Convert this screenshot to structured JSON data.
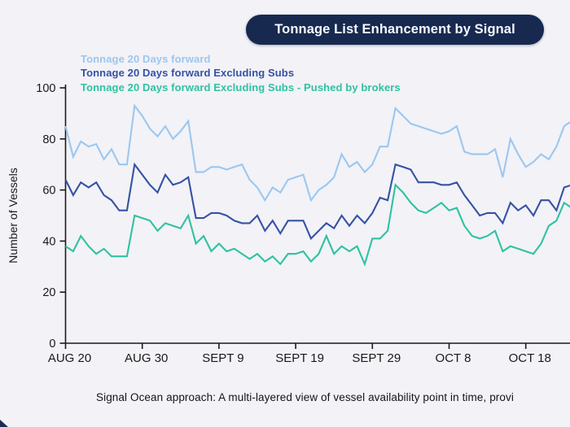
{
  "title": "Tonnage List Enhancement by Signal",
  "caption": "Signal Ocean approach: A multi-layered view of vessel availability point in time, provi",
  "colors": {
    "title_pill_bg": "#17294f",
    "title_pill_text": "#f5f8fe",
    "background": "#f2f2f7",
    "axis": "#1a1a1a",
    "series_light_blue": "#9cc7f0",
    "series_dark_blue": "#3552a4",
    "series_teal": "#2fc2a1"
  },
  "chart_data": {
    "type": "line",
    "title": "Tonnage List Enhancement by Signal",
    "xlabel": "",
    "ylabel": "Number of Vessels",
    "ylim": [
      0,
      100
    ],
    "yticks": [
      0,
      20,
      40,
      60,
      80,
      100
    ],
    "grid": false,
    "legend_position": "top-left",
    "x_description": "daily points, Aug 20 through ~Oct 25 (right edge clipped)",
    "x_tick_labels": [
      "AUG 20",
      "AUG 30",
      "SEPT 9",
      "SEPT 19",
      "SEPT 29",
      "OCT 8",
      "OCT 18"
    ],
    "x_tick_indices": [
      0,
      10,
      20,
      30,
      40,
      50,
      60
    ],
    "series": [
      {
        "name": "Tonnage 20 Days forward",
        "color": "#9cc7f0",
        "values": [
          85,
          73,
          79,
          77,
          78,
          72,
          76,
          70,
          70,
          93,
          89,
          84,
          81,
          85,
          80,
          83,
          87,
          67,
          67,
          69,
          69,
          68,
          69,
          70,
          64,
          61,
          56,
          61,
          59,
          64,
          65,
          66,
          56,
          60,
          62,
          65,
          74,
          69,
          71,
          67,
          70,
          77,
          77,
          92,
          89,
          86,
          85,
          84,
          83,
          82,
          83,
          85,
          75,
          74,
          74,
          74,
          76,
          65,
          80,
          74,
          69,
          71,
          74,
          72,
          77,
          85,
          87
        ]
      },
      {
        "name": "Tonnage 20 Days forward Excluding Subs",
        "color": "#3552a4",
        "values": [
          64,
          58,
          63,
          61,
          63,
          58,
          56,
          52,
          52,
          70,
          66,
          62,
          59,
          66,
          62,
          63,
          65,
          49,
          49,
          51,
          51,
          50,
          48,
          47,
          47,
          50,
          44,
          48,
          43,
          48,
          48,
          48,
          41,
          44,
          47,
          45,
          50,
          46,
          50,
          47,
          51,
          57,
          56,
          70,
          69,
          68,
          63,
          63,
          63,
          62,
          62,
          63,
          58,
          54,
          50,
          51,
          51,
          47,
          55,
          52,
          54,
          50,
          56,
          56,
          52,
          61,
          62
        ]
      },
      {
        "name": "Tonnage 20 Days forward Excluding Subs - Pushed by brokers",
        "color": "#2fc2a1",
        "values": [
          38,
          36,
          42,
          38,
          35,
          37,
          34,
          34,
          34,
          50,
          49,
          48,
          44,
          47,
          46,
          45,
          50,
          39,
          42,
          36,
          39,
          36,
          37,
          35,
          33,
          35,
          32,
          34,
          31,
          35,
          35,
          36,
          32,
          35,
          42,
          35,
          38,
          36,
          38,
          31,
          41,
          41,
          44,
          62,
          59,
          55,
          52,
          51,
          53,
          55,
          52,
          53,
          46,
          42,
          41,
          42,
          44,
          36,
          38,
          37,
          36,
          35,
          39,
          46,
          48,
          55,
          53
        ]
      }
    ]
  }
}
